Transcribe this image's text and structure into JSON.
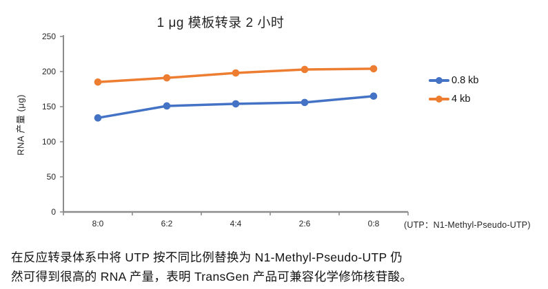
{
  "chart_data": {
    "type": "line",
    "title": "1 μg 模板转录 2 小时",
    "ylabel": "RNA 产量 (μg)",
    "xlabel": "",
    "categories": [
      "8:0",
      "6:2",
      "4:4",
      "2:6",
      "0:8"
    ],
    "x_axis_note": "(UTP：N1-Methyl-Pseudo-UTP)",
    "ylim": [
      0,
      250
    ],
    "y_ticks": [
      0,
      50,
      100,
      150,
      200,
      250
    ],
    "grid": false,
    "legend_position": "right",
    "axis_color": "#8c8c8c",
    "series": [
      {
        "name": "0.8 kb",
        "color": "#4472C4",
        "values": [
          134,
          151,
          154,
          156,
          165
        ]
      },
      {
        "name": "4 kb",
        "color": "#ED7D31",
        "values": [
          185,
          191,
          198,
          203,
          204
        ]
      }
    ]
  },
  "caption": {
    "line1": "在反应转录体系中将 UTP 按不同比例替换为 N1-Methyl-Pseudo-UTP 仍",
    "line2": "然可得到很高的 RNA 产量，表明 TransGen 产品可兼容化学修饰核苷酸。"
  }
}
